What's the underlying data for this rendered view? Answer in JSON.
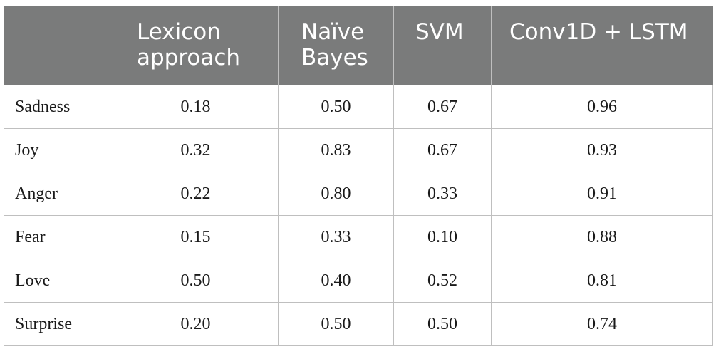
{
  "table": {
    "headers": [
      {
        "lines": [
          "",
          ""
        ]
      },
      {
        "lines": [
          "Lexicon",
          "approach"
        ]
      },
      {
        "lines": [
          "Naïve",
          "Bayes"
        ]
      },
      {
        "lines": [
          "SVM",
          ""
        ]
      },
      {
        "lines": [
          "Conv1D + LSTM",
          ""
        ]
      }
    ],
    "rows": [
      {
        "label": "Sadness",
        "values": [
          "0.18",
          "0.50",
          "0.67",
          "0.96"
        ]
      },
      {
        "label": "Joy",
        "values": [
          "0.32",
          "0.83",
          "0.67",
          "0.93"
        ]
      },
      {
        "label": "Anger",
        "values": [
          "0.22",
          "0.80",
          "0.33",
          "0.91"
        ]
      },
      {
        "label": "Fear",
        "values": [
          "0.15",
          "0.33",
          "0.10",
          "0.88"
        ]
      },
      {
        "label": "Love",
        "values": [
          "0.50",
          "0.40",
          "0.52",
          "0.81"
        ]
      },
      {
        "label": "Surprise",
        "values": [
          "0.20",
          "0.50",
          "0.50",
          "0.74"
        ]
      }
    ]
  }
}
